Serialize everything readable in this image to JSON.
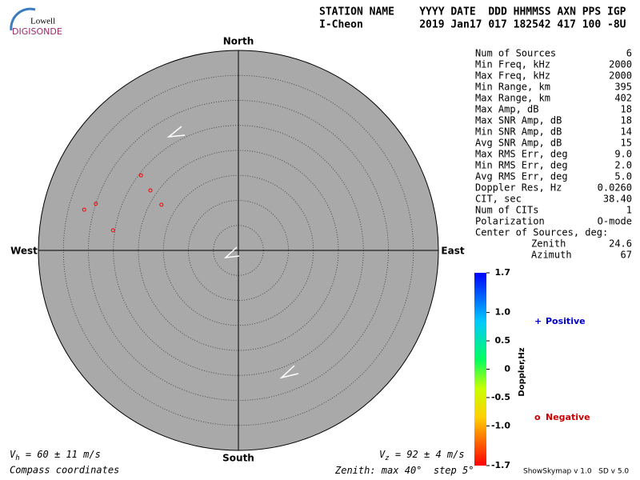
{
  "logo": {
    "top": "Lowell",
    "bottom": "DIGISONDE"
  },
  "header": {
    "labels": "STATION NAME    YYYY DATE  DDD HHMMSS AXN PPS IGP",
    "values": "I-Cheon         2019 Jan17 017 182542 417 100 -8U"
  },
  "compass": {
    "north": "North",
    "south": "South",
    "east": "East",
    "west": "West"
  },
  "chart_data": {
    "type": "polar-scatter",
    "zenith_label": "Zenith: max",
    "zenith_max": {
      "value": 40,
      "label": "40°"
    },
    "step_label": "step",
    "zenith_step": {
      "value": 5,
      "label": "5°"
    },
    "points": {
      "color": "#ff0000",
      "zenith": [
        31.9,
        30.0,
        24.6,
        21.3,
        17.9,
        25.4
      ],
      "azimuth": [
        284.8,
        288.1,
        307.6,
        304.3,
        300.7,
        279.1
      ]
    },
    "colorbar": {
      "label": "Doppler,Hz",
      "clim": [
        -1.7,
        1.7
      ],
      "ticks": [
        1.7,
        {
          "value": 1,
          "label": "1.0"
        },
        0.5,
        0,
        -0.5,
        {
          "value": -1,
          "label": "-1.0"
        },
        -1.7
      ]
    },
    "legend": {
      "positive": "Positive",
      "positive_symbol": "+",
      "negative": "Negative",
      "negative_symbol": "o"
    }
  },
  "stats": {
    "rows": [
      [
        "Num of Sources",
        "6"
      ],
      [
        "Min Freq, kHz",
        "2000"
      ],
      [
        "Max Freq, kHz",
        "2000"
      ],
      [
        "Min Range, km",
        "395"
      ],
      [
        "Max Range, km",
        "402"
      ],
      [
        "Max Amp, dB",
        "18"
      ],
      [
        "Max SNR Amp, dB",
        "18"
      ],
      [
        "Min SNR Amp, dB",
        "14"
      ],
      [
        "Avg SNR Amp, dB",
        "15"
      ],
      [
        "Max RMS Err, deg",
        "9.0"
      ],
      [
        "Min RMS Err, deg",
        "2.0"
      ],
      [
        "Avg RMS Err, deg",
        "5.0"
      ],
      [
        "Doppler Res, Hz",
        "0.0260"
      ],
      [
        "CIT, sec",
        "38.40"
      ],
      [
        "Num of CITs",
        "1"
      ],
      [
        "Polarization",
        "O-mode"
      ]
    ],
    "center_label": "Center of Sources, deg:",
    "zenith": [
      "Zenith",
      "24.6"
    ],
    "azimuth": [
      "Azimuth",
      "67"
    ]
  },
  "velocity": {
    "vh": {
      "symbol": "V",
      "sub": "h",
      "text": " = 60 ± 11 m/s"
    },
    "vz": {
      "symbol": "V",
      "sub": "z",
      "text": " = 92 ± 4 m/s"
    }
  },
  "footer": {
    "left": "Compass coordinates",
    "right": "ShowSkymap v 1.0   SD v 5.0"
  }
}
